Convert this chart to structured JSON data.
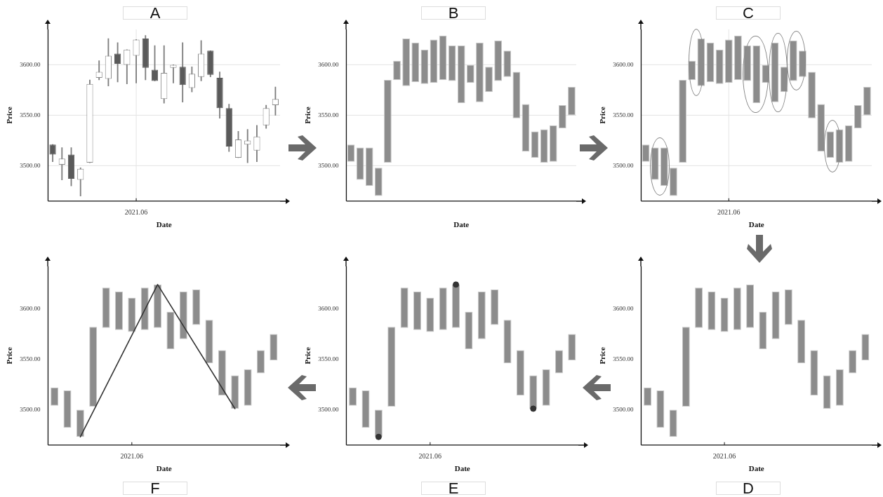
{
  "chart_data": [
    {
      "type": "candlestick",
      "title": "A",
      "xlabel": "Date",
      "ylabel": "Price",
      "grid": true,
      "categories": [
        null,
        null,
        null,
        null,
        null,
        null,
        null,
        null,
        null,
        "2021.06",
        null,
        null,
        null,
        null,
        null,
        null,
        null,
        null,
        null,
        null,
        null,
        null,
        null,
        null,
        null
      ],
      "ohlc": [
        [
          3521,
          3521,
          3504,
          3511
        ],
        [
          3501,
          3518,
          3486,
          3507
        ],
        [
          3511,
          3518,
          3480,
          3487
        ],
        [
          3486,
          3498,
          3470,
          3497
        ],
        [
          3503,
          3585,
          3503,
          3581
        ],
        [
          3587,
          3604,
          3585,
          3593
        ],
        [
          3586,
          3626,
          3579,
          3609
        ],
        [
          3611,
          3622,
          3583,
          3601
        ],
        [
          3600,
          3615,
          3581,
          3615
        ],
        [
          3609,
          3625,
          3582,
          3625
        ],
        [
          3626,
          3629,
          3585,
          3597
        ],
        [
          3595,
          3619,
          3584,
          3584
        ],
        [
          3566,
          3619,
          3562,
          3592
        ],
        [
          3597,
          3600,
          3582,
          3600
        ],
        [
          3598,
          3622,
          3563,
          3580
        ],
        [
          3577,
          3598,
          3573,
          3591
        ],
        [
          3588,
          3624,
          3584,
          3611
        ],
        [
          3614,
          3614,
          3588,
          3590
        ],
        [
          3587,
          3593,
          3547,
          3557
        ],
        [
          3557,
          3561,
          3514,
          3519
        ],
        [
          3508,
          3534,
          3508,
          3526
        ],
        [
          3521,
          3536,
          3503,
          3525
        ],
        [
          3515,
          3540,
          3504,
          3529
        ],
        [
          3540,
          3560,
          3537,
          3557
        ],
        [
          3560,
          3578,
          3550,
          3566
        ]
      ],
      "colors": [
        "#5a5a5a",
        "#8a8a8a",
        "#5a5a5a",
        "#8a8a8a",
        "#8a8a8a",
        "#8a8a8a",
        "#8a8a8a",
        "#5a5a5a",
        "#8a8a8a",
        "#8a8a8a",
        "#5a5a5a",
        "#5a5a5a",
        "#8a8a8a",
        "#8a8a8a",
        "#5a5a5a",
        "#8a8a8a",
        "#8a8a8a",
        "#5a5a5a",
        "#5a5a5a",
        "#5a5a5a",
        "#8a8a8a",
        "#8a8a8a",
        "#8a8a8a",
        "#8a8a8a",
        "#8a8a8a"
      ],
      "ylim": [
        3465,
        3635
      ],
      "yticks": [
        {
          "value": 3500,
          "label": "3500.00"
        },
        {
          "value": 3550,
          "label": "3550.00"
        },
        {
          "value": 3600,
          "label": "3600.00"
        }
      ]
    },
    {
      "type": "bar",
      "title": "B",
      "xlabel": "Date",
      "ylabel": "Price",
      "grid": true,
      "color": "#8c8c8c",
      "categories": [
        null,
        null,
        null,
        null,
        null,
        null,
        null,
        null,
        null,
        null,
        null,
        null,
        null,
        null,
        null,
        null,
        null,
        null,
        null,
        null,
        null,
        null,
        null,
        null,
        null
      ],
      "base": [
        3504,
        3486,
        3480,
        3470,
        3503,
        3585,
        3579,
        3583,
        3581,
        3582,
        3585,
        3584,
        3562,
        3582,
        3563,
        3573,
        3584,
        3588,
        3547,
        3514,
        3508,
        3503,
        3504,
        3537,
        3550
      ],
      "values": [
        17,
        32,
        38,
        28,
        82,
        19,
        47,
        39,
        34,
        43,
        44,
        35,
        57,
        18,
        59,
        25,
        40,
        26,
        46,
        47,
        26,
        33,
        36,
        23,
        28
      ],
      "ylim": [
        3465,
        3635
      ],
      "yticks": [
        {
          "value": 3500,
          "label": "3500.00"
        },
        {
          "value": 3550,
          "label": "3550.00"
        },
        {
          "value": 3600,
          "label": "3600.00"
        }
      ]
    },
    {
      "type": "bar",
      "title": "C",
      "xlabel": "Date",
      "ylabel": "Price",
      "grid": true,
      "color": "#8c8c8c",
      "categories": [
        null,
        null,
        null,
        null,
        null,
        null,
        null,
        null,
        null,
        "2021.06",
        null,
        null,
        null,
        null,
        null,
        null,
        null,
        null,
        null,
        null,
        null,
        null,
        null,
        null,
        null
      ],
      "base": [
        3504,
        3486,
        3480,
        3470,
        3503,
        3585,
        3579,
        3583,
        3581,
        3582,
        3585,
        3584,
        3562,
        3582,
        3563,
        3573,
        3584,
        3588,
        3547,
        3514,
        3508,
        3503,
        3504,
        3537,
        3550
      ],
      "values": [
        17,
        32,
        38,
        28,
        82,
        19,
        47,
        39,
        34,
        43,
        44,
        35,
        57,
        18,
        59,
        25,
        40,
        26,
        46,
        47,
        26,
        33,
        36,
        23,
        28
      ],
      "ylim": [
        3465,
        3635
      ],
      "yticks": [
        {
          "value": 3500,
          "label": "3500.00"
        },
        {
          "value": 3550,
          "label": "3550.00"
        },
        {
          "value": 3600,
          "label": "3600.00"
        }
      ]
    },
    {
      "type": "bar",
      "title": "F",
      "xlabel": "Date",
      "ylabel": "Price",
      "categories": [
        null,
        null,
        null,
        null,
        null,
        null,
        "2021.06",
        null,
        null,
        null,
        null,
        null,
        null,
        null,
        null,
        null,
        null,
        null
      ],
      "series": [
        {
          "color": "#8c8c8c",
          "base": [
            3504,
            3482,
            3473,
            3503,
            3581,
            3579,
            3577,
            3579,
            3581,
            3560,
            3570,
            3584,
            3546,
            3514,
            3501,
            3504,
            3536,
            3549
          ],
          "values": [
            18,
            37,
            27,
            79,
            40,
            38,
            34,
            42,
            43,
            37,
            47,
            35,
            43,
            45,
            33,
            36,
            23,
            26
          ]
        },
        {
          "type": "line",
          "color": "#333333",
          "marker": "none",
          "values": [
            null,
            null,
            3473,
            null,
            null,
            null,
            null,
            null,
            3624,
            null,
            null,
            null,
            null,
            null,
            3501,
            null,
            null,
            null
          ]
        }
      ],
      "ylim": [
        3465,
        3642
      ],
      "yticks": [
        {
          "value": 3500,
          "label": "3500.00"
        },
        {
          "value": 3550,
          "label": "3550.00"
        },
        {
          "value": 3600,
          "label": "3600.00"
        }
      ]
    },
    {
      "type": "bar",
      "title": "E",
      "xlabel": "Date",
      "ylabel": "Price",
      "categories": [
        null,
        null,
        null,
        null,
        null,
        null,
        "2021.06",
        null,
        null,
        null,
        null,
        null,
        null,
        null,
        null,
        null,
        null,
        null
      ],
      "series": [
        {
          "color": "#8c8c8c",
          "base": [
            3504,
            3482,
            3473,
            3503,
            3581,
            3579,
            3577,
            3579,
            3581,
            3560,
            3570,
            3584,
            3546,
            3514,
            3501,
            3504,
            3536,
            3549
          ],
          "values": [
            18,
            37,
            27,
            79,
            40,
            38,
            34,
            42,
            43,
            37,
            47,
            35,
            43,
            45,
            33,
            36,
            23,
            26
          ]
        },
        {
          "type": "scatter",
          "color": "#333333",
          "marker": "circle",
          "values": [
            null,
            null,
            3473,
            null,
            null,
            null,
            null,
            null,
            3624,
            null,
            null,
            null,
            null,
            null,
            3501,
            null,
            null,
            null
          ]
        }
      ],
      "ylim": [
        3465,
        3642
      ],
      "yticks": [
        {
          "value": 3500,
          "label": "3500.00"
        },
        {
          "value": 3550,
          "label": "3550.00"
        },
        {
          "value": 3600,
          "label": "3600.00"
        }
      ]
    },
    {
      "type": "bar",
      "title": "D",
      "xlabel": "Date",
      "ylabel": "Price",
      "color": "#8c8c8c",
      "categories": [
        null,
        null,
        null,
        null,
        null,
        null,
        "2021.06",
        null,
        null,
        null,
        null,
        null,
        null,
        null,
        null,
        null,
        null,
        null
      ],
      "base": [
        3504,
        3482,
        3473,
        3503,
        3581,
        3579,
        3577,
        3579,
        3581,
        3560,
        3570,
        3584,
        3546,
        3514,
        3501,
        3504,
        3536,
        3549
      ],
      "values": [
        18,
        37,
        27,
        79,
        40,
        38,
        34,
        42,
        43,
        37,
        47,
        35,
        43,
        45,
        33,
        36,
        23,
        26
      ],
      "ylim": [
        3465,
        3642
      ],
      "yticks": [
        {
          "value": 3500,
          "label": "3500.00"
        },
        {
          "value": 3550,
          "label": "3550.00"
        },
        {
          "value": 3600,
          "label": "3600.00"
        }
      ]
    }
  ]
}
